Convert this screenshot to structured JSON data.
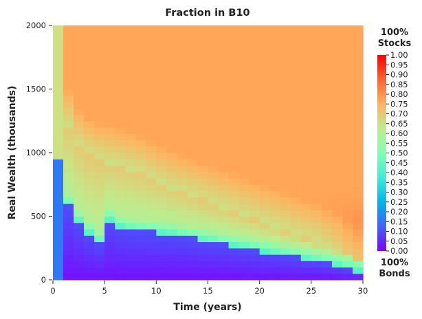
{
  "chart_data": {
    "type": "heatmap",
    "title": "Fraction in B10",
    "xlabel": "Time (years)",
    "ylabel": "Real Wealth (thousands)",
    "xlim": [
      0,
      30
    ],
    "ylim": [
      0,
      2000
    ],
    "x_ticks": [
      "0",
      "5",
      "10",
      "15",
      "20",
      "25",
      "30"
    ],
    "y_ticks": [
      "0",
      "500",
      "1000",
      "1500",
      "2000"
    ],
    "colorscale": "rainbow",
    "color_range": [
      0.0,
      1.0
    ],
    "colorbar_ticks": [
      "0.00",
      "0.05",
      "0.10",
      "0.15",
      "0.20",
      "0.25",
      "0.30",
      "0.35",
      "0.40",
      "0.45",
      "0.50",
      "0.55",
      "0.60",
      "0.65",
      "0.70",
      "0.75",
      "0.80",
      "0.85",
      "0.90",
      "0.95",
      "1.00"
    ],
    "colorbar_top_label": [
      "100%",
      "Stocks"
    ],
    "colorbar_bottom_label": [
      "100%",
      "Bonds"
    ],
    "time_columns": [
      0,
      1,
      2,
      3,
      4,
      5,
      6,
      7,
      8,
      9,
      10,
      11,
      12,
      13,
      14,
      15,
      16,
      17,
      18,
      19,
      20,
      21,
      22,
      23,
      24,
      25,
      26,
      27,
      28,
      29
    ],
    "low_wealth_bound_by_year": [
      960,
      590,
      460,
      370,
      300,
      470,
      420,
      400,
      390,
      380,
      370,
      360,
      345,
      330,
      315,
      300,
      285,
      270,
      255,
      240,
      225,
      210,
      195,
      180,
      165,
      150,
      135,
      115,
      95,
      75
    ],
    "high_equity_floor_by_year": [
      2000,
      1200,
      1050,
      980,
      940,
      920,
      900,
      870,
      840,
      800,
      760,
      720,
      690,
      660,
      630,
      600,
      570,
      540,
      510,
      480,
      450,
      420,
      390,
      360,
      330,
      300,
      270,
      240,
      190,
      150
    ],
    "mid_band_value": 0.65,
    "high_region_value": 0.77
  }
}
